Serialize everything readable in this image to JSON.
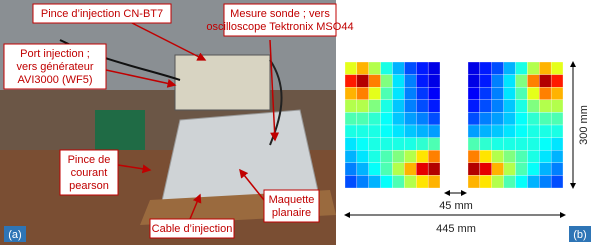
{
  "figure": {
    "annotations": [
      {
        "lines": [
          "Pince d’injection CN-BT7"
        ]
      },
      {
        "lines": [
          "Port injection ;",
          "vers générateur",
          "AVI3000 (WF5)"
        ]
      },
      {
        "lines": [
          "Mesure sonde ; vers",
          "oscilloscope Tektronix MSO44"
        ]
      },
      {
        "lines": [
          "Pince de",
          "courant",
          "pearson"
        ]
      },
      {
        "lines": [
          "Cable d’injection"
        ]
      },
      {
        "lines": [
          "Maquette",
          "planaire"
        ]
      }
    ],
    "panel_labels": [
      "(a)",
      "(b)"
    ],
    "dimensions": {
      "height": "300 mm",
      "gap": "45 mm",
      "width": "445 mm"
    },
    "heatmap": {
      "left": [
        [
          60,
          70,
          55,
          40,
          30,
          20,
          15,
          10
        ],
        [
          85,
          95,
          75,
          50,
          35,
          25,
          15,
          10
        ],
        [
          70,
          75,
          60,
          45,
          35,
          25,
          18,
          12
        ],
        [
          55,
          55,
          50,
          40,
          32,
          25,
          20,
          15
        ],
        [
          45,
          45,
          42,
          38,
          32,
          28,
          25,
          20
        ],
        [
          40,
          40,
          40,
          38,
          35,
          32,
          30,
          28
        ],
        [
          35,
          38,
          40,
          40,
          40,
          40,
          42,
          45
        ],
        [
          30,
          35,
          40,
          45,
          50,
          55,
          65,
          75
        ],
        [
          25,
          30,
          38,
          45,
          55,
          70,
          90,
          95
        ],
        [
          20,
          25,
          30,
          38,
          45,
          55,
          65,
          70
        ]
      ],
      "right": [
        [
          10,
          15,
          20,
          30,
          40,
          55,
          70,
          60
        ],
        [
          10,
          15,
          25,
          35,
          50,
          75,
          95,
          85
        ],
        [
          12,
          18,
          25,
          35,
          45,
          60,
          75,
          70
        ],
        [
          15,
          20,
          25,
          32,
          40,
          50,
          55,
          55
        ],
        [
          20,
          25,
          28,
          32,
          38,
          42,
          45,
          45
        ],
        [
          28,
          30,
          32,
          35,
          38,
          40,
          40,
          40
        ],
        [
          45,
          42,
          40,
          40,
          40,
          40,
          38,
          35
        ],
        [
          75,
          65,
          55,
          50,
          45,
          40,
          35,
          30
        ],
        [
          95,
          90,
          70,
          55,
          45,
          38,
          30,
          25
        ],
        [
          70,
          65,
          55,
          45,
          38,
          30,
          25,
          20
        ]
      ]
    }
  }
}
